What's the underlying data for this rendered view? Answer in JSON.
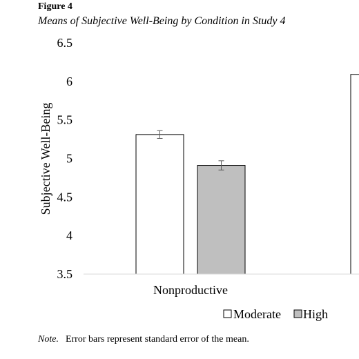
{
  "figure": {
    "label": "Figure 4",
    "title": "Means of Subjective Well-Being by Condition in Study 4",
    "note_label": "Note.",
    "note_text": "Error bars represent standard error of the mean."
  },
  "colors": {
    "moderate_fill": "#ffffff",
    "high_fill": "#bfbfbf",
    "bar_stroke": "#000000",
    "axis": "#d9d9d9",
    "error_bar": "#595959"
  },
  "chart_data": {
    "type": "bar",
    "title": "",
    "xlabel": "",
    "ylabel": "Subjective Well-Being",
    "ylim": [
      3.5,
      6.5
    ],
    "yticks": [
      "3.5",
      "4",
      "4.5",
      "5",
      "5.5",
      "6",
      "6.5"
    ],
    "grid": false,
    "legend_position": "bottom-right",
    "categories": [
      "Nonproductive",
      ""
    ],
    "series": [
      {
        "name": "Moderate",
        "values": [
          5.31,
          6.09
        ],
        "errors": [
          0.05,
          null
        ]
      },
      {
        "name": "High",
        "values": [
          4.91,
          null
        ],
        "errors": [
          0.06,
          null
        ]
      }
    ]
  }
}
